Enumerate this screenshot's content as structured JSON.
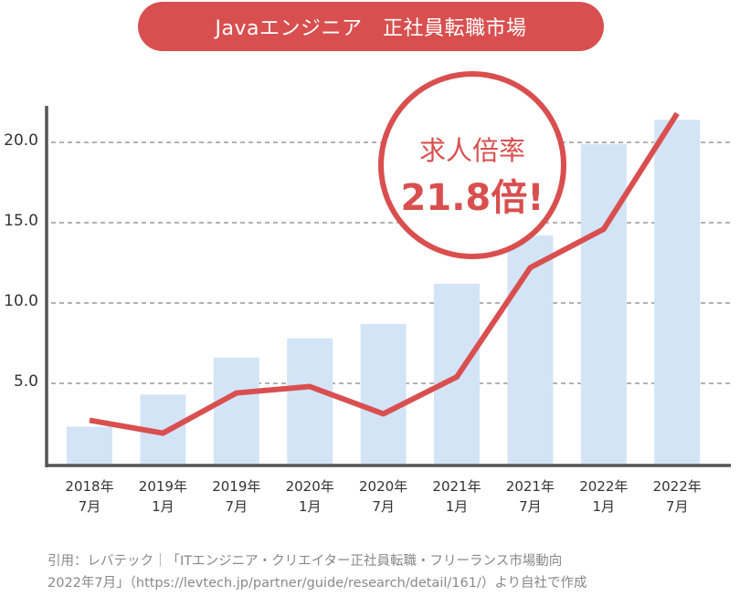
{
  "title": {
    "text": "Javaエンジニア　正社員転職市場",
    "bg_color": "#d94f4f"
  },
  "callout": {
    "line1": "求人倍率",
    "line2": "21.8倍!",
    "color": "#d94f4f"
  },
  "y_axis": {
    "ticks": [
      "20.0",
      "15.0",
      "10.0",
      "5.0"
    ]
  },
  "x_axis": {
    "ticks": [
      {
        "line1": "2018年",
        "line2": "7月"
      },
      {
        "line1": "2019年",
        "line2": "1月"
      },
      {
        "line1": "2019年",
        "line2": "7月"
      },
      {
        "line1": "2020年",
        "line2": "1月"
      },
      {
        "line1": "2020年",
        "line2": "7月"
      },
      {
        "line1": "2021年",
        "line2": "1月"
      },
      {
        "line1": "2021年",
        "line2": "7月"
      },
      {
        "line1": "2022年",
        "line2": "1月"
      },
      {
        "line1": "2022年",
        "line2": "7月"
      }
    ]
  },
  "source": {
    "line1": "引用：レバテック｜「ITエンジニア・クリエイター正社員転職・フリーランス市場動向",
    "line2": "2022年7月」（https://levtech.jp/partner/guide/research/detail/161/）より自社で作成"
  },
  "chart_data": {
    "type": "bar",
    "title": "Javaエンジニア　正社員転職市場",
    "categories": [
      "2018年7月",
      "2019年1月",
      "2019年7月",
      "2020年1月",
      "2020年7月",
      "2021年1月",
      "2021年7月",
      "2022年1月",
      "2022年7月"
    ],
    "series": [
      {
        "name": "bars",
        "type": "bar",
        "color": "#d3e4f7",
        "values": [
          2.3,
          4.3,
          6.6,
          7.8,
          8.7,
          11.2,
          14.2,
          19.9,
          21.4
        ]
      },
      {
        "name": "求人倍率",
        "type": "line",
        "color": "#d94f4f",
        "values": [
          2.7,
          1.9,
          4.4,
          4.8,
          3.1,
          5.4,
          12.2,
          14.6,
          21.8
        ]
      }
    ],
    "xlabel": "",
    "ylabel": "",
    "ylim": [
      0,
      22
    ],
    "yticks": [
      5.0,
      10.0,
      15.0,
      20.0
    ],
    "grid": "horizontal dashed",
    "annotation": "求人倍率 21.8倍!"
  }
}
